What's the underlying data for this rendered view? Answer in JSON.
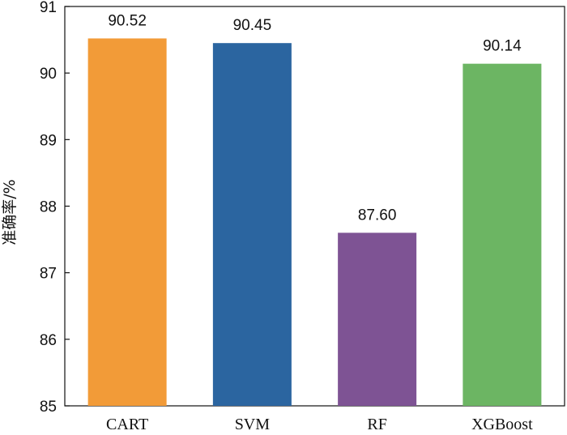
{
  "chart_data": {
    "type": "bar",
    "title": "",
    "xlabel": "",
    "ylabel": "准确率/%",
    "categories": [
      "CART",
      "SVM",
      "RF",
      "XGBoost"
    ],
    "values": [
      90.52,
      90.45,
      87.6,
      90.14
    ],
    "value_labels": [
      "90.52",
      "90.45",
      "87.60",
      "90.14"
    ],
    "colors": [
      "#F29B38",
      "#2B65A0",
      "#7E5394",
      "#6CB563"
    ],
    "ylim": [
      85,
      91
    ],
    "yticks": [
      85,
      86,
      87,
      88,
      89,
      90,
      91
    ],
    "grid": false,
    "legend": "none"
  }
}
